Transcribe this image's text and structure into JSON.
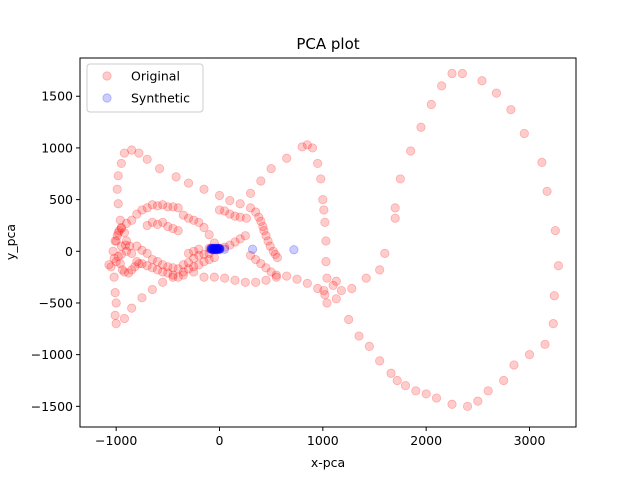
{
  "chart_data": {
    "type": "scatter",
    "title": "PCA plot",
    "xlabel": "x-pca",
    "ylabel": "y_pca",
    "xlim": [
      -1350,
      3450
    ],
    "ylim": [
      -1700,
      1870
    ],
    "xticks": [
      -1000,
      0,
      1000,
      2000,
      3000
    ],
    "yticks": [
      -1500,
      -1000,
      -500,
      0,
      500,
      1000,
      1500
    ],
    "grid": false,
    "legend_position": "upper-left",
    "series": [
      {
        "name": "Original",
        "color": "#ff0000",
        "alpha": 0.2,
        "points": [
          [
            -920,
            950
          ],
          [
            -850,
            980
          ],
          [
            -780,
            950
          ],
          [
            -700,
            890
          ],
          [
            -580,
            800
          ],
          [
            -420,
            720
          ],
          [
            -300,
            660
          ],
          [
            -150,
            600
          ],
          [
            0,
            540
          ],
          [
            100,
            490
          ],
          [
            200,
            460
          ],
          [
            300,
            420
          ],
          [
            350,
            380
          ],
          [
            380,
            330
          ],
          [
            400,
            290
          ],
          [
            420,
            240
          ],
          [
            430,
            200
          ],
          [
            450,
            150
          ],
          [
            470,
            100
          ],
          [
            490,
            50
          ],
          [
            520,
            0
          ],
          [
            540,
            -30
          ],
          [
            560,
            -60
          ],
          [
            -950,
            850
          ],
          [
            -980,
            730
          ],
          [
            -990,
            600
          ],
          [
            -980,
            460
          ],
          [
            -960,
            300
          ],
          [
            -970,
            200
          ],
          [
            -990,
            150
          ],
          [
            -1000,
            -100
          ],
          [
            -1020,
            -250
          ],
          [
            -1010,
            -400
          ],
          [
            -1000,
            -500
          ],
          [
            -1010,
            -620
          ],
          [
            -1000,
            -700
          ],
          [
            -920,
            -650
          ],
          [
            -850,
            -550
          ],
          [
            -750,
            -450
          ],
          [
            -650,
            -370
          ],
          [
            -550,
            -300
          ],
          [
            -450,
            -250
          ],
          [
            -350,
            -230
          ],
          [
            -250,
            -200
          ],
          [
            -150,
            -250
          ],
          [
            -50,
            -250
          ],
          [
            50,
            -260
          ],
          [
            150,
            -280
          ],
          [
            250,
            -300
          ],
          [
            350,
            -300
          ],
          [
            450,
            -280
          ],
          [
            550,
            -250
          ],
          [
            650,
            -240
          ],
          [
            750,
            -270
          ],
          [
            850,
            -310
          ],
          [
            950,
            -360
          ],
          [
            1010,
            -380
          ],
          [
            1020,
            -420
          ],
          [
            1040,
            -500
          ],
          [
            1100,
            -330
          ],
          [
            1130,
            -290
          ],
          [
            1180,
            -380
          ],
          [
            -950,
            230
          ],
          [
            -900,
            270
          ],
          [
            -850,
            300
          ],
          [
            -800,
            360
          ],
          [
            -750,
            400
          ],
          [
            -700,
            420
          ],
          [
            -650,
            450
          ],
          [
            -600,
            440
          ],
          [
            -550,
            450
          ],
          [
            -500,
            430
          ],
          [
            -450,
            430
          ],
          [
            -400,
            420
          ],
          [
            -350,
            350
          ],
          [
            -300,
            320
          ],
          [
            -250,
            300
          ],
          [
            -200,
            280
          ],
          [
            -150,
            230
          ],
          [
            -100,
            160
          ],
          [
            -50,
            80
          ],
          [
            -1030,
            0
          ],
          [
            -1010,
            100
          ],
          [
            -980,
            180
          ],
          [
            -950,
            220
          ],
          [
            -920,
            180
          ],
          [
            -900,
            100
          ],
          [
            -870,
            50
          ],
          [
            -850,
            -20
          ],
          [
            -800,
            -100
          ],
          [
            -750,
            -120
          ],
          [
            -700,
            -140
          ],
          [
            -650,
            -160
          ],
          [
            -600,
            -180
          ],
          [
            -550,
            -200
          ],
          [
            -500,
            -210
          ],
          [
            -450,
            -230
          ],
          [
            -400,
            -250
          ],
          [
            -350,
            -200
          ],
          [
            -300,
            -170
          ],
          [
            -250,
            -150
          ],
          [
            -200,
            -130
          ],
          [
            -150,
            -100
          ],
          [
            -100,
            -80
          ],
          [
            -50,
            -60
          ],
          [
            -800,
            50
          ],
          [
            -750,
            10
          ],
          [
            -700,
            -20
          ],
          [
            -650,
            -80
          ],
          [
            -600,
            -100
          ],
          [
            -550,
            -130
          ],
          [
            -500,
            -150
          ],
          [
            -450,
            -160
          ],
          [
            -400,
            -170
          ],
          [
            -350,
            -130
          ],
          [
            -300,
            -110
          ],
          [
            -250,
            -70
          ],
          [
            -200,
            -40
          ],
          [
            -150,
            -30
          ],
          [
            -100,
            -20
          ],
          [
            -900,
            0
          ],
          [
            -950,
            50
          ],
          [
            -1000,
            100
          ],
          [
            -980,
            -50
          ],
          [
            -960,
            -120
          ],
          [
            -940,
            -180
          ],
          [
            -920,
            -200
          ],
          [
            -880,
            -210
          ],
          [
            -850,
            -180
          ],
          [
            -820,
            -150
          ],
          [
            -780,
            -120
          ],
          [
            -1050,
            -150
          ],
          [
            -1070,
            -130
          ],
          [
            -1020,
            -70
          ],
          [
            -950,
            -30
          ],
          [
            -910,
            60
          ],
          [
            -700,
            250
          ],
          [
            -650,
            280
          ],
          [
            -600,
            260
          ],
          [
            -550,
            280
          ],
          [
            -500,
            240
          ],
          [
            -450,
            220
          ],
          [
            -400,
            200
          ],
          [
            -300,
            -20
          ],
          [
            -250,
            0
          ],
          [
            -200,
            20
          ],
          [
            -100,
            30
          ],
          [
            0,
            30
          ],
          [
            50,
            40
          ],
          [
            100,
            60
          ],
          [
            150,
            90
          ],
          [
            200,
            120
          ],
          [
            250,
            150
          ],
          [
            0,
            400
          ],
          [
            50,
            390
          ],
          [
            100,
            360
          ],
          [
            150,
            340
          ],
          [
            200,
            330
          ],
          [
            260,
            320
          ],
          [
            300,
            -40
          ],
          [
            350,
            -80
          ],
          [
            400,
            -120
          ],
          [
            450,
            -160
          ],
          [
            500,
            -200
          ],
          [
            550,
            -230
          ],
          [
            300,
            560
          ],
          [
            400,
            680
          ],
          [
            500,
            800
          ],
          [
            650,
            900
          ],
          [
            800,
            1010
          ],
          [
            850,
            1030
          ],
          [
            900,
            1000
          ],
          [
            950,
            850
          ],
          [
            980,
            700
          ],
          [
            1000,
            500
          ],
          [
            1010,
            400
          ],
          [
            1020,
            280
          ],
          [
            1030,
            100
          ],
          [
            1030,
            -100
          ],
          [
            1040,
            -260
          ],
          [
            1250,
            -660
          ],
          [
            1350,
            -820
          ],
          [
            1450,
            -920
          ],
          [
            1550,
            -1060
          ],
          [
            1660,
            -1180
          ],
          [
            1720,
            -1250
          ],
          [
            1800,
            -1300
          ],
          [
            1900,
            -1350
          ],
          [
            2000,
            -1380
          ],
          [
            2100,
            -1420
          ],
          [
            2250,
            -1480
          ],
          [
            2400,
            -1500
          ],
          [
            2500,
            -1450
          ],
          [
            2600,
            -1350
          ],
          [
            2750,
            -1250
          ],
          [
            2850,
            -1100
          ],
          [
            3000,
            -1000
          ],
          [
            3150,
            -900
          ],
          [
            3230,
            -700
          ],
          [
            3240,
            -430
          ],
          [
            3280,
            -140
          ],
          [
            3250,
            200
          ],
          [
            3170,
            580
          ],
          [
            3120,
            860
          ],
          [
            2950,
            1140
          ],
          [
            2820,
            1370
          ],
          [
            2680,
            1530
          ],
          [
            2540,
            1650
          ],
          [
            2350,
            1720
          ],
          [
            2250,
            1720
          ],
          [
            2150,
            1600
          ],
          [
            2050,
            1420
          ],
          [
            1950,
            1200
          ],
          [
            1850,
            970
          ],
          [
            1750,
            700
          ],
          [
            1700,
            420
          ],
          [
            1700,
            320
          ],
          [
            1600,
            -20
          ],
          [
            1550,
            -180
          ],
          [
            1420,
            -260
          ],
          [
            1280,
            -360
          ],
          [
            1130,
            -460
          ]
        ]
      },
      {
        "name": "Synthetic",
        "color": "#0000ff",
        "alpha": 0.2,
        "points": [
          [
            -80,
            20
          ],
          [
            -70,
            25
          ],
          [
            -60,
            20
          ],
          [
            -50,
            25
          ],
          [
            -40,
            20
          ],
          [
            -30,
            25
          ],
          [
            -20,
            30
          ],
          [
            -10,
            20
          ],
          [
            0,
            25
          ],
          [
            -80,
            30
          ],
          [
            -70,
            15
          ],
          [
            -60,
            30
          ],
          [
            -50,
            15
          ],
          [
            -40,
            30
          ],
          [
            -30,
            15
          ],
          [
            -20,
            20
          ],
          [
            -10,
            30
          ],
          [
            0,
            15
          ],
          [
            -75,
            22
          ],
          [
            -65,
            28
          ],
          [
            -55,
            18
          ],
          [
            -45,
            28
          ],
          [
            -35,
            22
          ],
          [
            -25,
            18
          ],
          [
            -15,
            28
          ],
          [
            -5,
            22
          ],
          [
            -85,
            25
          ],
          [
            5,
            25
          ],
          [
            50,
            20
          ],
          [
            320,
            20
          ],
          [
            720,
            15
          ]
        ]
      }
    ]
  }
}
